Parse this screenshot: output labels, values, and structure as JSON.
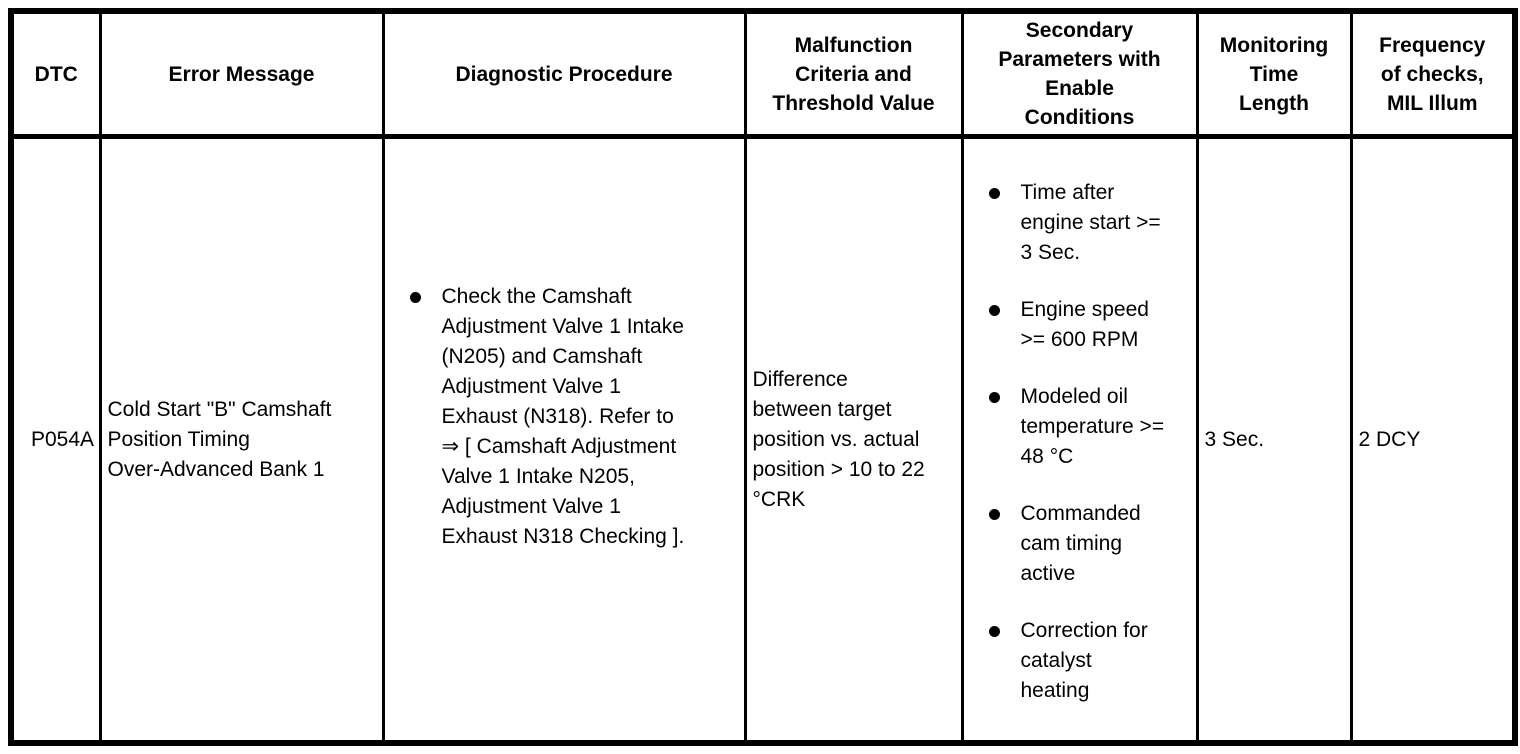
{
  "page": {
    "background_color": "#ffffff",
    "text_color": "#000000",
    "border_color": "#000000"
  },
  "table": {
    "columns": [
      {
        "key": "dtc",
        "label": "DTC"
      },
      {
        "key": "error_message",
        "label": "Error Message"
      },
      {
        "key": "diagnostic_procedure",
        "label": "Diagnostic Procedure"
      },
      {
        "key": "malfunction_criteria",
        "label": "Malfunction\nCriteria and\nThreshold Value"
      },
      {
        "key": "secondary_parameters",
        "label": "Secondary\nParameters with\nEnable\nConditions"
      },
      {
        "key": "monitoring_time",
        "label": "Monitoring\nTime\nLength"
      },
      {
        "key": "frequency_of_checks",
        "label": "Frequency\nof checks,\nMIL Illum"
      }
    ],
    "row": {
      "dtc": "P054A",
      "error_message": "Cold Start \"B\" Camshaft\nPosition Timing\nOver-Advanced Bank 1",
      "diagnostic_procedure_bullets": [
        "Check the Camshaft\nAdjustment Valve 1 Intake\n(N205) and Camshaft\nAdjustment Valve 1\nExhaust (N318). Refer to\n⇒ [ Camshaft Adjustment\nValve 1 Intake N205,\nAdjustment Valve 1\nExhaust N318 Checking ]."
      ],
      "malfunction_criteria": "Difference\nbetween target\nposition vs. actual\nposition > 10 to 22\n°CRK",
      "secondary_parameters": [
        "Time after\nengine start >=\n3 Sec.",
        "Engine speed\n>= 600 RPM",
        "Modeled oil\ntemperature >=\n48 °C",
        "Commanded\ncam timing\nactive",
        "Correction for\ncatalyst\nheating"
      ],
      "monitoring_time": "3 Sec.",
      "frequency_of_checks": "2 DCY"
    }
  }
}
